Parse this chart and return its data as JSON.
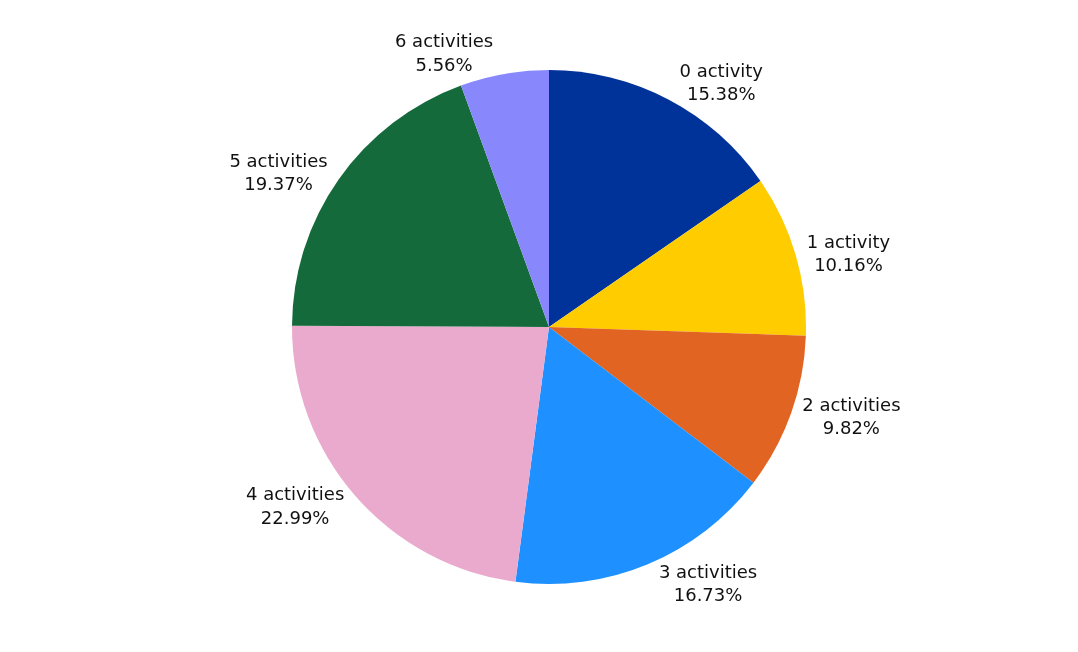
{
  "chart_data": {
    "type": "pie",
    "categories": [
      "0 activity",
      "1 activity",
      "2 activities",
      "3 activities",
      "4 activities",
      "5 activities",
      "6 activities"
    ],
    "values": [
      15.38,
      10.16,
      9.82,
      16.73,
      22.99,
      19.37,
      5.56
    ],
    "value_labels": [
      "15.38%",
      "10.16%",
      "9.82%",
      "16.73%",
      "22.99%",
      "19.37%",
      "5.56%"
    ],
    "colors": [
      "#003399",
      "#ffcc00",
      "#e26422",
      "#1e90ff",
      "#eaaacd",
      "#146a3a",
      "#8888fc"
    ]
  }
}
